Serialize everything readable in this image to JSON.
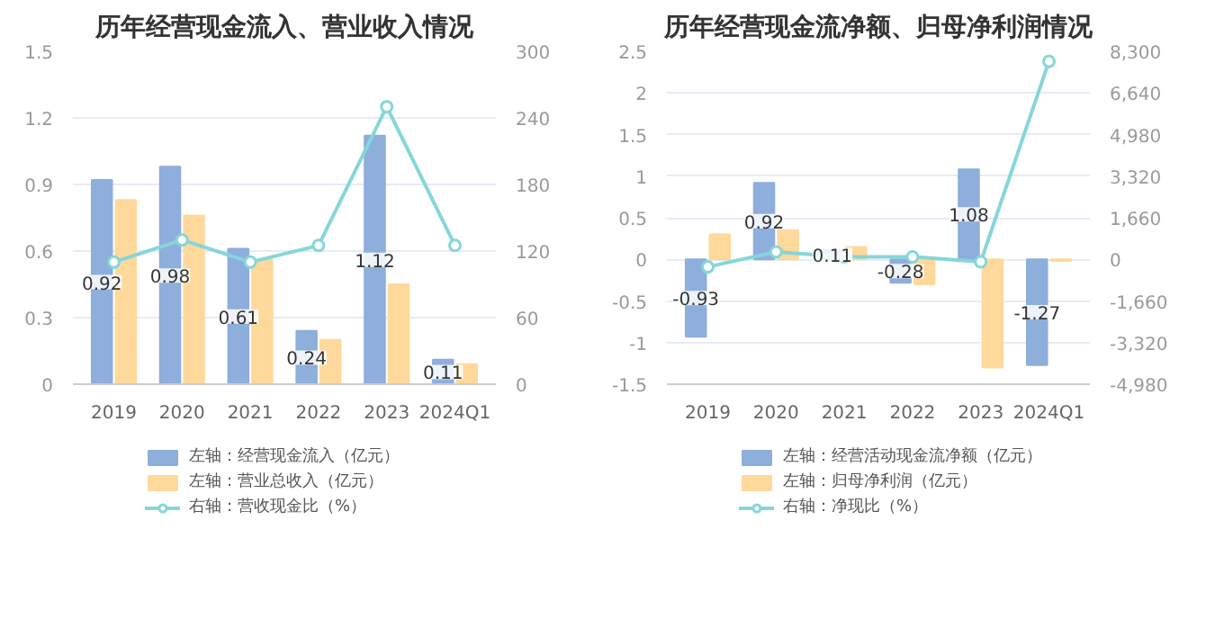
{
  "chart_data": [
    {
      "type": "bar",
      "title": "历年经营现金流入、营业收入情况",
      "categories": [
        "2019",
        "2020",
        "2021",
        "2022",
        "2023",
        "2024Q1"
      ],
      "series": [
        {
          "name": "左轴：经营现金流入（亿元）",
          "color": "#8eaedb",
          "values": [
            0.92,
            0.98,
            0.61,
            0.24,
            1.12,
            0.11
          ],
          "value_labels": [
            "0.92",
            "0.98",
            "0.61",
            "0.24",
            "1.12",
            "0.11"
          ]
        },
        {
          "name": "左轴：营业总收入（亿元）",
          "color": "#fed99b",
          "values": [
            0.83,
            0.76,
            0.56,
            0.2,
            0.45,
            0.09
          ]
        },
        {
          "name": "右轴：营收现金比（%）",
          "type": "line",
          "axis": "y2",
          "color": "#86d6d9",
          "values": [
            110,
            130,
            110,
            125,
            250,
            125
          ]
        }
      ],
      "ylim": [
        0,
        1.5
      ],
      "yticks": [
        0,
        0.3,
        0.6,
        0.9,
        1.2,
        1.5
      ],
      "y2lim": [
        0,
        300
      ],
      "y2ticks": [
        0,
        60,
        120,
        180,
        240,
        300
      ],
      "grid": "y",
      "legend": "bottom",
      "marker": "circle",
      "line_style": "solid"
    },
    {
      "type": "bar",
      "title": "历年经营现金流净额、归母净利润情况",
      "categories": [
        "2019",
        "2020",
        "2021",
        "2022",
        "2023",
        "2024Q1"
      ],
      "series": [
        {
          "name": "左轴：经营活动现金流净额（亿元）",
          "color": "#8eaedb",
          "values": [
            -0.93,
            0.92,
            0.11,
            -0.28,
            1.08,
            -1.27
          ],
          "value_labels": [
            "-0.93",
            "0.92",
            "0.11",
            "-0.28",
            "1.08",
            "-1.27"
          ]
        },
        {
          "name": "左轴：归母净利润（亿元）",
          "color": "#fed99b",
          "values": [
            0.3,
            0.35,
            0.15,
            -0.3,
            -1.3,
            -0.02
          ]
        },
        {
          "name": "右轴：净现比（%）",
          "type": "line",
          "axis": "y2",
          "color": "#86d6d9",
          "values": [
            -300,
            300,
            100,
            100,
            -100,
            7900
          ]
        }
      ],
      "ylim": [
        -1.5,
        2.5
      ],
      "yticks": [
        -1.5,
        -1,
        -0.5,
        0,
        0.5,
        1,
        1.5,
        2,
        2.5
      ],
      "y2lim": [
        -4980,
        8300
      ],
      "y2ticks": [
        {
          "value": -4980,
          "label": "-4,980"
        },
        {
          "value": -3320,
          "label": "-3,320"
        },
        {
          "value": -1660,
          "label": "-1,660"
        },
        0,
        {
          "value": 1660,
          "label": "1,660"
        },
        {
          "value": 3320,
          "label": "3,320"
        },
        {
          "value": 4980,
          "label": "4,980"
        },
        {
          "value": 6640,
          "label": "6,640"
        },
        {
          "value": 8300,
          "label": "8,300"
        }
      ],
      "grid": "y",
      "legend": "bottom",
      "marker": "circle",
      "line_style": "solid"
    }
  ]
}
